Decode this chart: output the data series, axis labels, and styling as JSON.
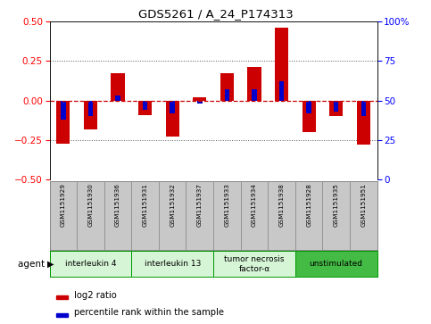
{
  "title": "GDS5261 / A_24_P174313",
  "samples": [
    "GSM1151929",
    "GSM1151930",
    "GSM1151936",
    "GSM1151931",
    "GSM1151932",
    "GSM1151937",
    "GSM1151933",
    "GSM1151934",
    "GSM1151938",
    "GSM1151928",
    "GSM1151935",
    "GSM1151951"
  ],
  "log2_ratio": [
    -0.27,
    -0.18,
    0.17,
    -0.09,
    -0.23,
    0.02,
    0.17,
    0.21,
    0.46,
    -0.2,
    -0.1,
    -0.28
  ],
  "percentile": [
    38,
    40,
    53,
    44,
    42,
    48,
    57,
    57,
    62,
    42,
    43,
    40
  ],
  "ylim": [
    -0.5,
    0.5
  ],
  "yticks_left": [
    -0.5,
    -0.25,
    0,
    0.25,
    0.5
  ],
  "bar_color_red": "#cc0000",
  "bar_color_blue": "#0000cc",
  "bg_color": "#ffffff",
  "plot_bg": "#ffffff",
  "groups": [
    {
      "label": "interleukin 4",
      "start": 0,
      "end": 3,
      "color": "#d6f5d6"
    },
    {
      "label": "interleukin 13",
      "start": 3,
      "end": 6,
      "color": "#d6f5d6"
    },
    {
      "label": "tumor necrosis\nfactor-α",
      "start": 6,
      "end": 9,
      "color": "#d6f5d6"
    },
    {
      "label": "unstimulated",
      "start": 9,
      "end": 12,
      "color": "#44bb44"
    }
  ],
  "legend_red": "log2 ratio",
  "legend_blue": "percentile rank within the sample",
  "bar_width": 0.5,
  "blue_bar_width": 0.18,
  "zero_line_color": "#cc0000",
  "dotted_line_color": "#555555",
  "sample_bg": "#c8c8c8",
  "sample_border": "#888888"
}
